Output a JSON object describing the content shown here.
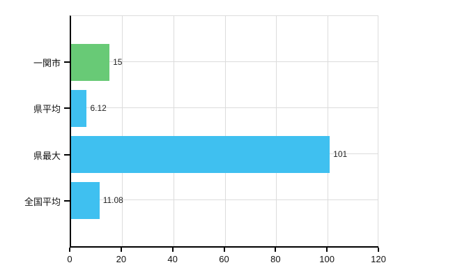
{
  "colors": {
    "background": "#ffffff",
    "axis": "#000000",
    "gridline": "#dcdcdc",
    "text": "#222222",
    "green_bar": "#68ca76",
    "blue_bar": "#3fc0f0"
  },
  "chart_data": {
    "type": "bar",
    "orientation": "horizontal",
    "title": "",
    "xlabel": "",
    "ylabel": "",
    "categories": [
      "一関市",
      "県平均",
      "県最大",
      "全国平均"
    ],
    "values": [
      15,
      6.12,
      101,
      11.08
    ],
    "value_labels": [
      "15",
      "6.12",
      "101",
      "11.08"
    ],
    "bar_colors": [
      "#68ca76",
      "#3fc0f0",
      "#3fc0f0",
      "#3fc0f0"
    ],
    "xlim": [
      0,
      120
    ],
    "xticks": [
      0,
      20,
      40,
      60,
      80,
      100,
      120
    ],
    "xtick_labels": [
      "0",
      "20",
      "40",
      "60",
      "80",
      "100",
      "120"
    ],
    "grid": true,
    "legend_position": "none"
  }
}
